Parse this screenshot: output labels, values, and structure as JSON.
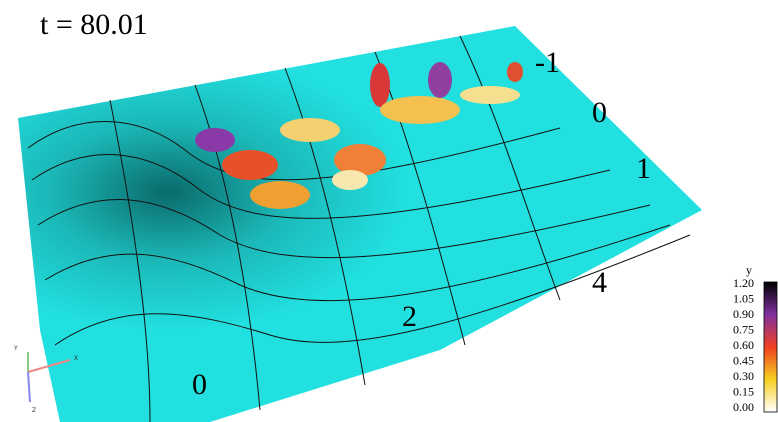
{
  "title": "t = 80.01",
  "axis_labels": {
    "lateral": [
      "-1",
      "0",
      "1"
    ],
    "streamwise": [
      "0",
      "2",
      "4"
    ]
  },
  "colorbar": {
    "title": "y",
    "ticks": [
      "1.20",
      "1.05",
      "0.90",
      "0.75",
      "0.60",
      "0.45",
      "0.30",
      "0.15",
      "0.00"
    ]
  },
  "orientation_triad": {
    "x": "X",
    "y": "Y",
    "z": "Z"
  }
}
